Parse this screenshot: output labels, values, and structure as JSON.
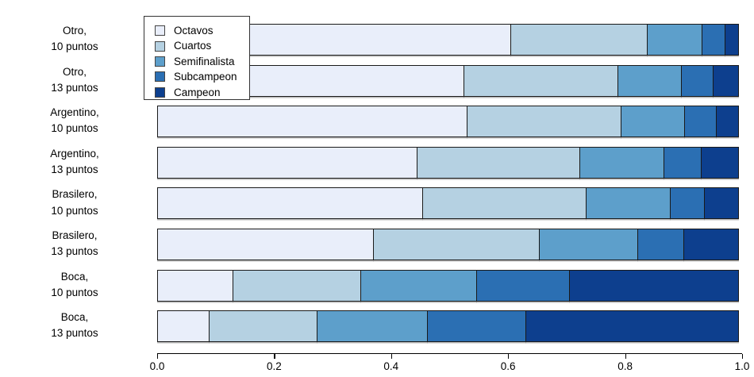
{
  "chart_data": {
    "type": "bar",
    "orientation": "horizontal_stacked",
    "title": "",
    "xlabel": "",
    "ylabel": "",
    "xlim": [
      0,
      1
    ],
    "grid": false,
    "legend_position": "top-left",
    "x_ticks": [
      {
        "label": "0.0",
        "value": 0.0
      },
      {
        "label": "0.2",
        "value": 0.2
      },
      {
        "label": "0.4",
        "value": 0.4
      },
      {
        "label": "0.6",
        "value": 0.6
      },
      {
        "label": "0.8",
        "value": 0.8
      },
      {
        "label": "1.0",
        "value": 1.0
      }
    ],
    "categories": [
      {
        "line1": "Otro,",
        "line2": "10 puntos"
      },
      {
        "line1": "Otro,",
        "line2": "13 puntos"
      },
      {
        "line1": "Argentino,",
        "line2": "10 puntos"
      },
      {
        "line1": "Argentino,",
        "line2": "13 puntos"
      },
      {
        "line1": "Brasilero,",
        "line2": "10 puntos"
      },
      {
        "line1": "Brasilero,",
        "line2": "13 puntos"
      },
      {
        "line1": "Boca,",
        "line2": "10 puntos"
      },
      {
        "line1": "Boca,",
        "line2": "13 puntos"
      }
    ],
    "series": [
      {
        "name": "Octavos",
        "color": "#e9eefa",
        "values": [
          0.605,
          0.525,
          0.53,
          0.445,
          0.455,
          0.37,
          0.13,
          0.09
        ]
      },
      {
        "name": "Cuartos",
        "color": "#b5d1e2",
        "values": [
          0.235,
          0.265,
          0.265,
          0.28,
          0.28,
          0.285,
          0.22,
          0.185
        ]
      },
      {
        "name": "Semifinalista",
        "color": "#5d9fcb",
        "values": [
          0.095,
          0.11,
          0.11,
          0.145,
          0.145,
          0.17,
          0.2,
          0.19
        ]
      },
      {
        "name": "Subcampeon",
        "color": "#2b6fb3",
        "values": [
          0.04,
          0.055,
          0.055,
          0.065,
          0.06,
          0.08,
          0.16,
          0.17
        ]
      },
      {
        "name": "Campeon",
        "color": "#0d3f8e",
        "values": [
          0.025,
          0.045,
          0.04,
          0.065,
          0.06,
          0.095,
          0.29,
          0.365
        ]
      }
    ],
    "segment_border_color": "#1a1a1a",
    "axis_color": "#000000"
  }
}
